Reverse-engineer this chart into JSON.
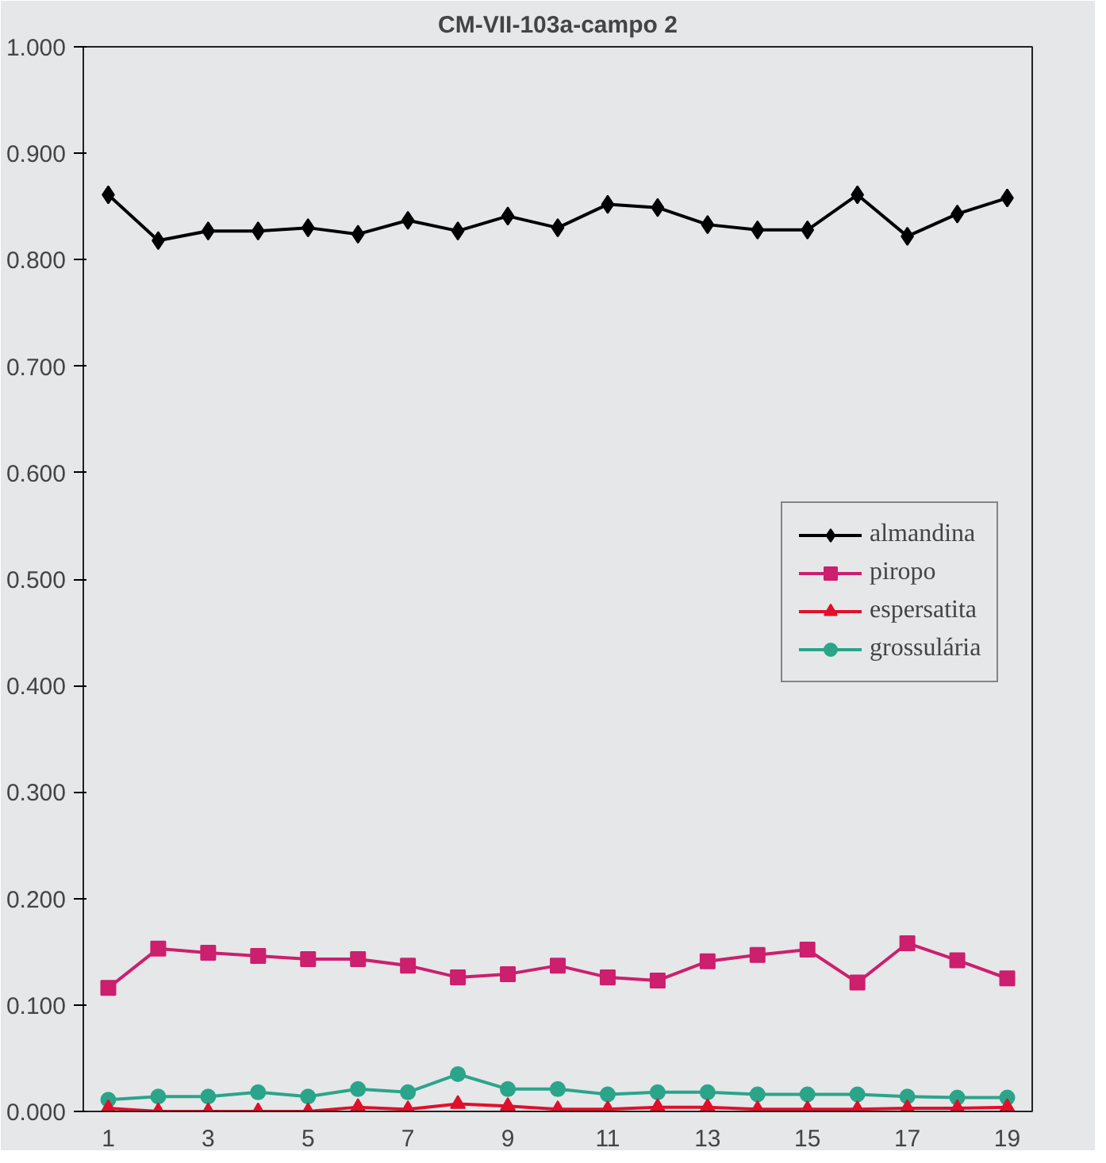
{
  "chart_data": {
    "type": "line",
    "title": "CM-VII-103a-campo 2",
    "x": [
      1,
      2,
      3,
      4,
      5,
      6,
      7,
      8,
      9,
      10,
      11,
      12,
      13,
      14,
      15,
      16,
      17,
      18,
      19
    ],
    "xlim": [
      0.5,
      19.5
    ],
    "xticks": [
      1,
      3,
      5,
      7,
      9,
      11,
      13,
      15,
      17,
      19
    ],
    "ylim": [
      0,
      1
    ],
    "yticks": [
      {
        "value": 0,
        "label": "0.000"
      },
      {
        "value": 0.1,
        "label": "0.100"
      },
      {
        "value": 0.2,
        "label": "0.200"
      },
      {
        "value": 0.3,
        "label": "0.300"
      },
      {
        "value": 0.4,
        "label": "0.400"
      },
      {
        "value": 0.5,
        "label": "0.500"
      },
      {
        "value": 0.6,
        "label": "0.600"
      },
      {
        "value": 0.7,
        "label": "0.700"
      },
      {
        "value": 0.8,
        "label": "0.800"
      },
      {
        "value": 0.9,
        "label": "0.900"
      },
      {
        "value": 1,
        "label": "1.000"
      }
    ],
    "grid": false,
    "legend": "right",
    "series": [
      {
        "name": "almandina",
        "color": "#000000",
        "marker": "diamond",
        "values": [
          0.861,
          0.818,
          0.827,
          0.827,
          0.83,
          0.824,
          0.837,
          0.827,
          0.841,
          0.83,
          0.852,
          0.849,
          0.833,
          0.828,
          0.828,
          0.861,
          0.822,
          0.843,
          0.858
        ]
      },
      {
        "name": "piropo",
        "color": "#cc1f6e",
        "marker": "square",
        "values": [
          0.116,
          0.153,
          0.149,
          0.146,
          0.143,
          0.143,
          0.137,
          0.126,
          0.129,
          0.137,
          0.126,
          0.123,
          0.141,
          0.147,
          0.152,
          0.121,
          0.158,
          0.142,
          0.125
        ]
      },
      {
        "name": "espersatita",
        "color": "#e0102a",
        "marker": "triangle",
        "values": [
          0.003,
          0.0,
          0.0,
          0.0,
          0.0,
          0.004,
          0.002,
          0.007,
          0.005,
          0.002,
          0.002,
          0.004,
          0.004,
          0.002,
          0.002,
          0.002,
          0.003,
          0.003,
          0.004
        ]
      },
      {
        "name": "grossulária",
        "color": "#2aa58a",
        "marker": "circle",
        "values": [
          0.011,
          0.014,
          0.014,
          0.018,
          0.014,
          0.021,
          0.018,
          0.035,
          0.021,
          0.021,
          0.016,
          0.018,
          0.018,
          0.016,
          0.016,
          0.016,
          0.014,
          0.013,
          0.013
        ]
      }
    ]
  }
}
